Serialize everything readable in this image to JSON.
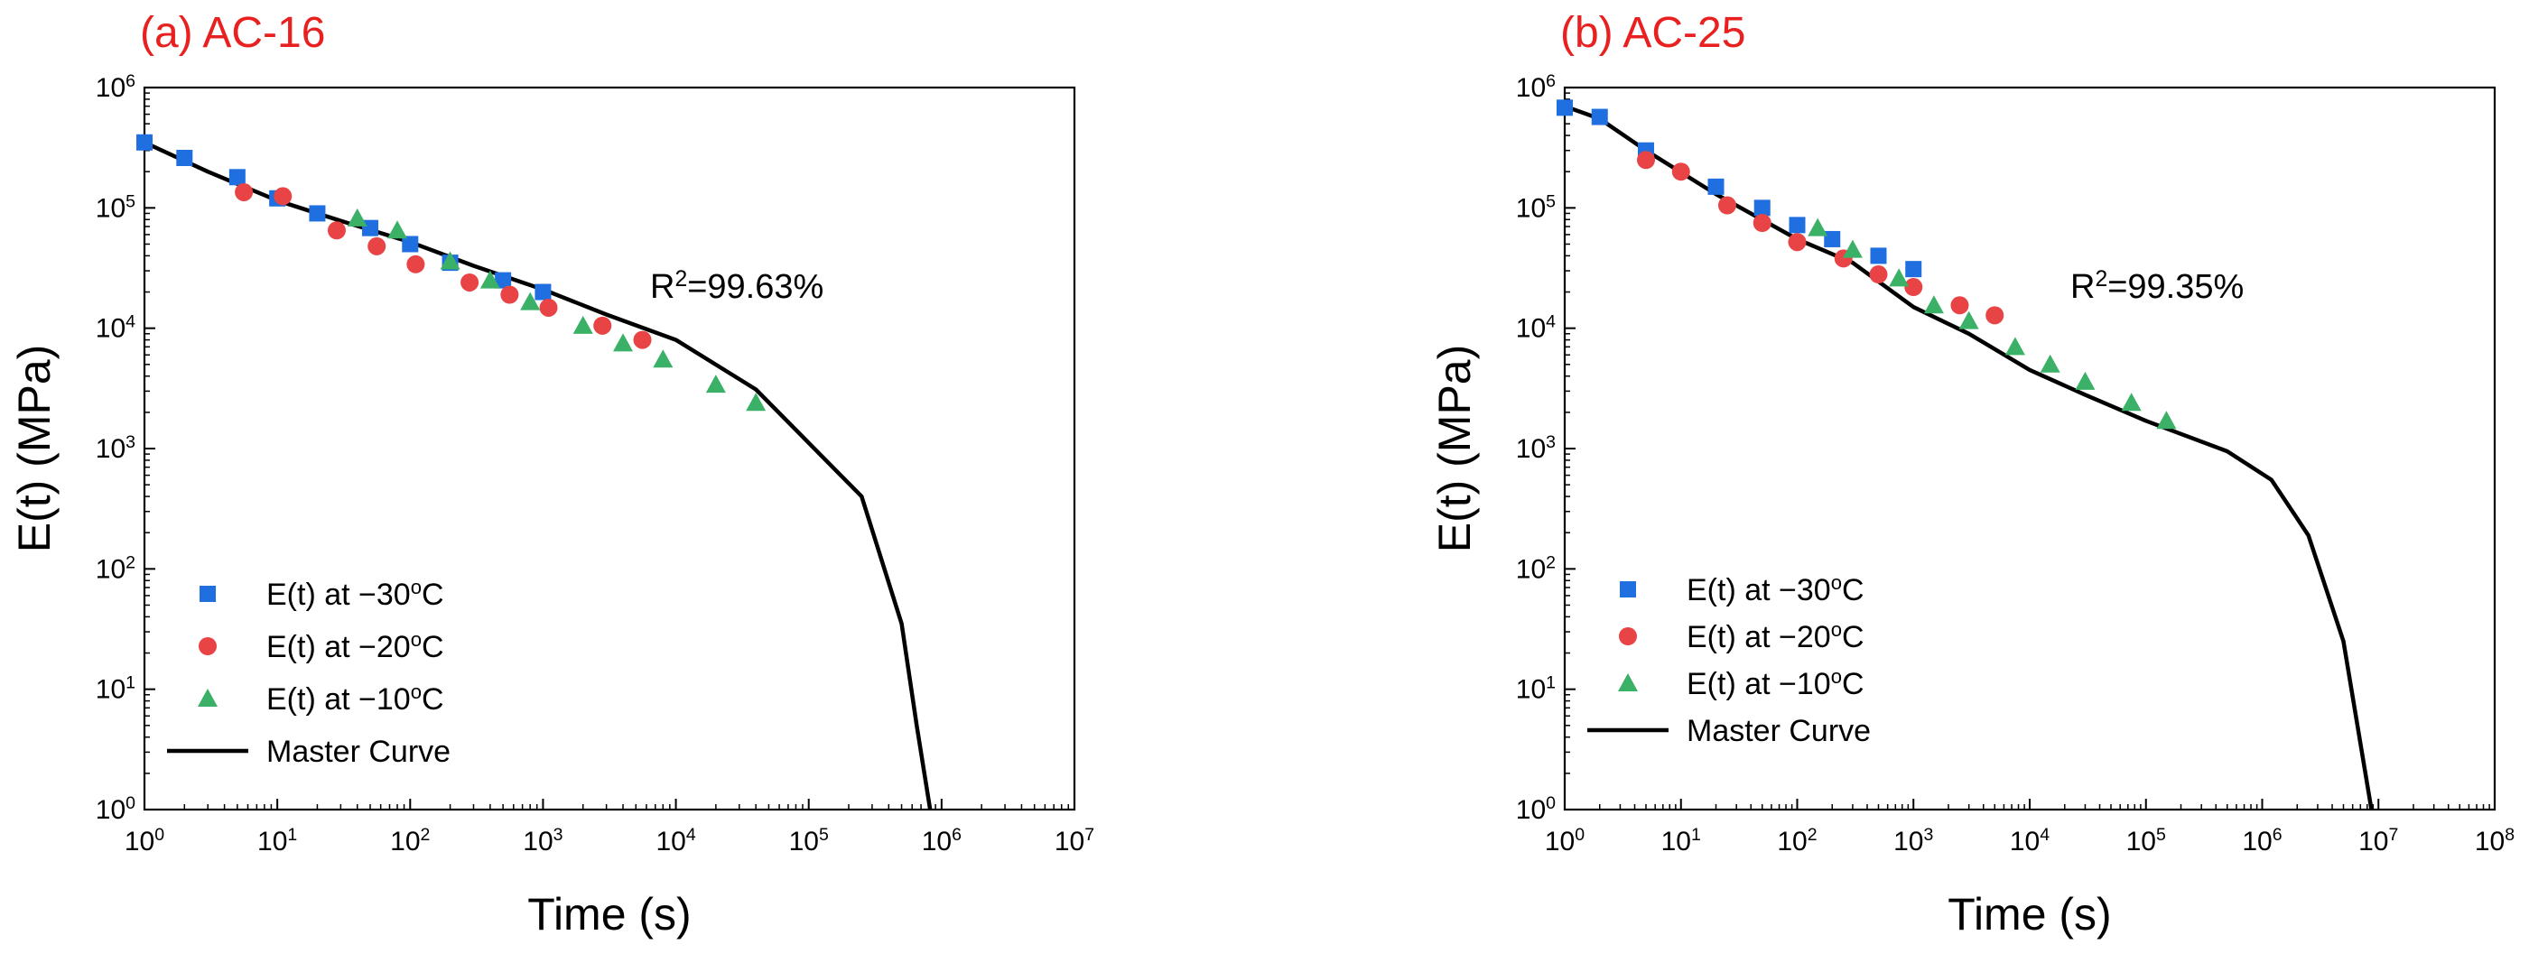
{
  "colors": {
    "square": "#1f6fe0",
    "circle": "#e84345",
    "triangle": "#3bb067",
    "curve": "#000000",
    "title": "#e8201f"
  },
  "chart_data": [
    {
      "type": "scatter",
      "title": "(a) AC-16",
      "xlabel": "Time (s)",
      "ylabel": "E(t) (MPa)",
      "xscale": "log",
      "yscale": "log",
      "xlim": [
        1,
        10000000
      ],
      "ylim": [
        1,
        1000000
      ],
      "x_ticks": [
        {
          "base": "10",
          "exp": "0"
        },
        {
          "base": "10",
          "exp": "1"
        },
        {
          "base": "10",
          "exp": "2"
        },
        {
          "base": "10",
          "exp": "3"
        },
        {
          "base": "10",
          "exp": "4"
        },
        {
          "base": "10",
          "exp": "5"
        },
        {
          "base": "10",
          "exp": "6"
        },
        {
          "base": "10",
          "exp": "7"
        }
      ],
      "y_ticks": [
        {
          "base": "10",
          "exp": "0"
        },
        {
          "base": "10",
          "exp": "1"
        },
        {
          "base": "10",
          "exp": "2"
        },
        {
          "base": "10",
          "exp": "3"
        },
        {
          "base": "10",
          "exp": "4"
        },
        {
          "base": "10",
          "exp": "5"
        },
        {
          "base": "10",
          "exp": "6"
        }
      ],
      "annotation": {
        "prefix": "R",
        "sup": "2",
        "value": "=99.63%"
      },
      "legend_position": "bottom-left",
      "series": [
        {
          "name": "E(t) at −30°C",
          "label_text": "E(t) at −30",
          "label_sup": "o",
          "label_tail": "C",
          "marker": "square",
          "x": [
            1,
            2,
            5,
            10,
            20,
            50,
            100,
            200,
            500,
            1000
          ],
          "y": [
            350000,
            260000,
            180000,
            120000,
            90000,
            68000,
            50000,
            35000,
            25000,
            20000
          ]
        },
        {
          "name": "E(t) at −20°C",
          "label_text": "E(t) at −20",
          "label_sup": "o",
          "label_tail": "C",
          "marker": "circle",
          "x": [
            5.6,
            11,
            28,
            56,
            110,
            280,
            560,
            1100,
            2800,
            5600
          ],
          "y": [
            135000,
            125000,
            65000,
            48000,
            34000,
            24000,
            19000,
            14800,
            10500,
            8000
          ]
        },
        {
          "name": "E(t) at −10°C",
          "label_text": "E(t) at −10",
          "label_sup": "o",
          "label_tail": "C",
          "marker": "triangle",
          "x": [
            40,
            80,
            200,
            400,
            800,
            2000,
            4000,
            8000,
            20000,
            40000
          ],
          "y": [
            82000,
            65000,
            36000,
            25000,
            16500,
            10500,
            7500,
            5500,
            3400,
            2400
          ]
        }
      ],
      "curve": {
        "name": "Master Curve",
        "x": [
          1,
          3,
          10,
          30,
          100,
          300,
          1000,
          3000,
          10000,
          40000,
          250000,
          500000,
          650000,
          820000
        ],
        "y": [
          350000,
          200000,
          115000,
          78000,
          52000,
          33000,
          21000,
          13000,
          8000,
          3100,
          400,
          35,
          5,
          1
        ]
      }
    },
    {
      "type": "scatter",
      "title": "(b) AC-25",
      "xlabel": "Time (s)",
      "ylabel": "E(t) (MPa)",
      "xscale": "log",
      "yscale": "log",
      "xlim": [
        1,
        100000000
      ],
      "ylim": [
        1,
        1000000
      ],
      "x_ticks": [
        {
          "base": "10",
          "exp": "0"
        },
        {
          "base": "10",
          "exp": "1"
        },
        {
          "base": "10",
          "exp": "2"
        },
        {
          "base": "10",
          "exp": "3"
        },
        {
          "base": "10",
          "exp": "4"
        },
        {
          "base": "10",
          "exp": "5"
        },
        {
          "base": "10",
          "exp": "6"
        },
        {
          "base": "10",
          "exp": "7"
        },
        {
          "base": "10",
          "exp": "8"
        }
      ],
      "y_ticks": [
        {
          "base": "10",
          "exp": "0"
        },
        {
          "base": "10",
          "exp": "1"
        },
        {
          "base": "10",
          "exp": "2"
        },
        {
          "base": "10",
          "exp": "3"
        },
        {
          "base": "10",
          "exp": "4"
        },
        {
          "base": "10",
          "exp": "5"
        },
        {
          "base": "10",
          "exp": "6"
        }
      ],
      "annotation": {
        "prefix": "R",
        "sup": "2",
        "value": "=99.35%"
      },
      "legend_position": "bottom-left",
      "series": [
        {
          "name": "E(t) at −30°C",
          "label_text": "E(t) at −30",
          "label_sup": "o",
          "label_tail": "C",
          "marker": "square",
          "x": [
            1,
            2,
            5,
            20,
            50,
            100,
            200,
            500,
            1000
          ],
          "y": [
            680000,
            570000,
            300000,
            150000,
            100000,
            72000,
            55000,
            40000,
            31000
          ]
        },
        {
          "name": "E(t) at −20°C",
          "label_text": "E(t) at −20",
          "label_sup": "o",
          "label_tail": "C",
          "marker": "circle",
          "x": [
            5,
            10,
            25,
            50,
            100,
            250,
            500,
            1000,
            2500,
            5000
          ],
          "y": [
            250000,
            200000,
            105000,
            75000,
            52000,
            38000,
            28000,
            22000,
            15500,
            12800
          ]
        },
        {
          "name": "E(t) at −10°C",
          "label_text": "E(t) at −10",
          "label_sup": "o",
          "label_tail": "C",
          "marker": "triangle",
          "x": [
            150,
            300,
            750,
            1500,
            3000,
            7500,
            15000,
            30000,
            75000,
            150000
          ],
          "y": [
            68000,
            45000,
            26000,
            15500,
            11500,
            7000,
            5000,
            3600,
            2400,
            1700
          ]
        }
      ],
      "curve": {
        "name": "Master Curve",
        "x": [
          1,
          2,
          5,
          20,
          100,
          300,
          1000,
          3000,
          10000,
          30000,
          100000,
          500000,
          1200000,
          2500000,
          5000000,
          8700000
        ],
        "y": [
          700000,
          550000,
          300000,
          130000,
          55000,
          35000,
          15000,
          9000,
          4500,
          2800,
          1700,
          950,
          550,
          190,
          25,
          1
        ]
      }
    }
  ]
}
